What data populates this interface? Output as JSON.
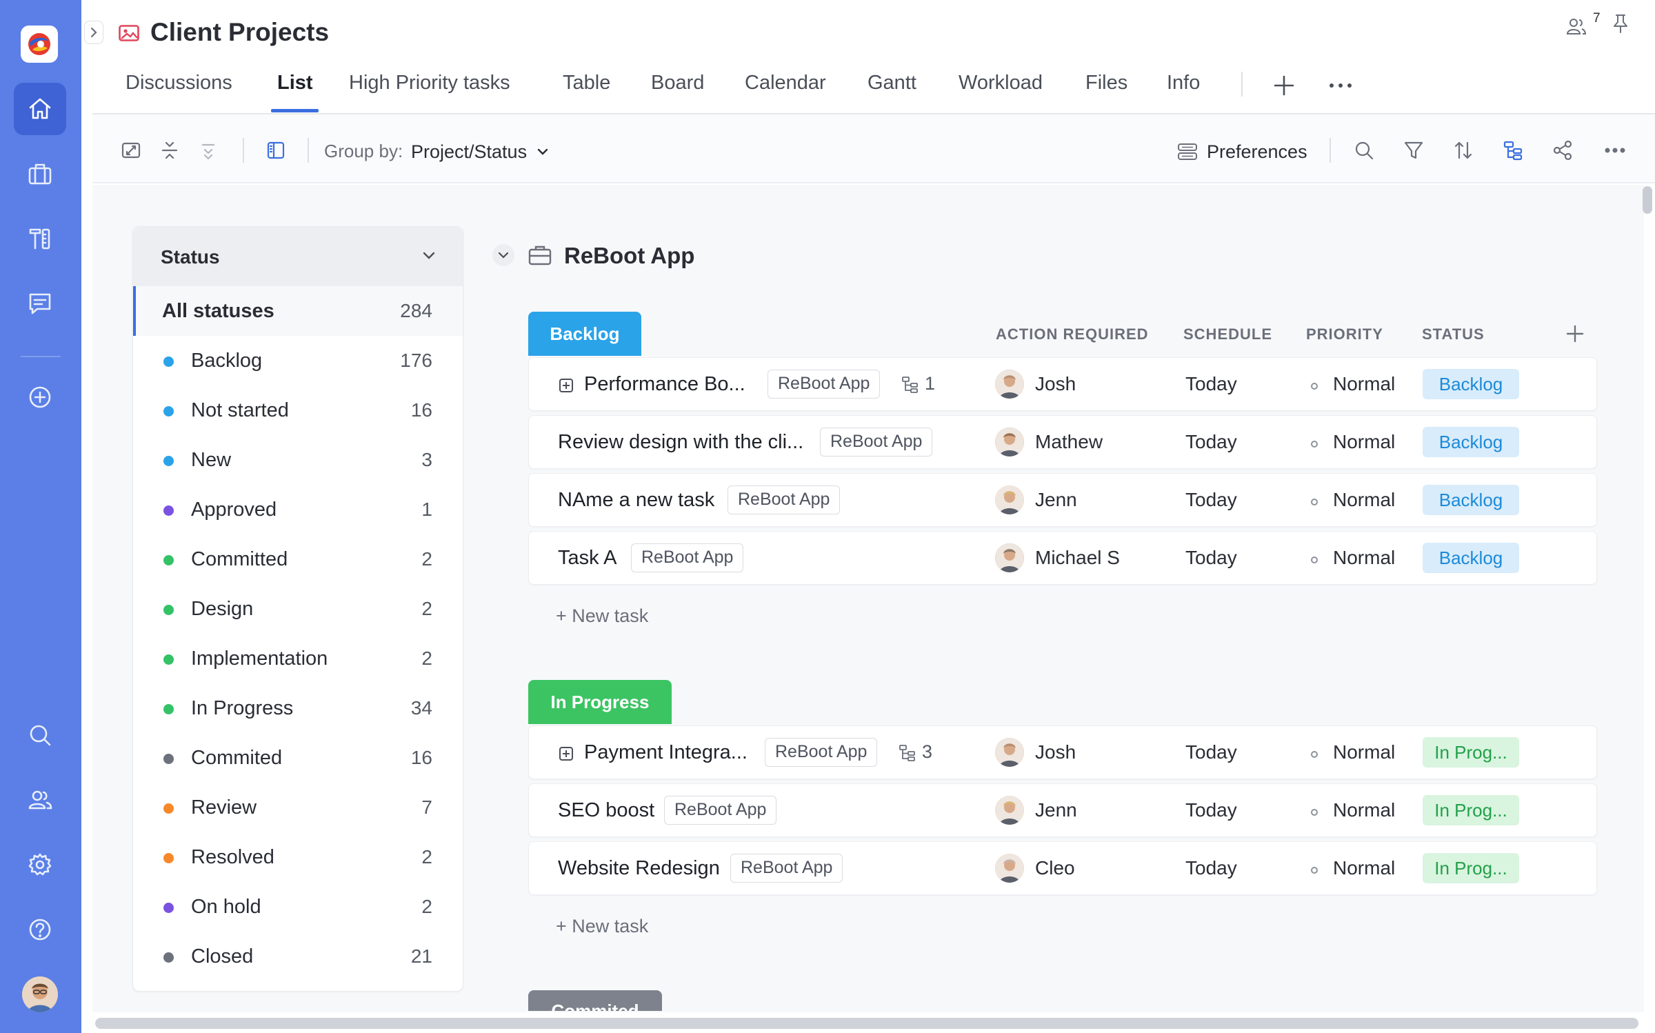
{
  "app": {
    "title": "Client Projects",
    "members_count": "7"
  },
  "tabs": [
    {
      "label": "Discussions"
    },
    {
      "label": "List"
    },
    {
      "label": "High Priority tasks"
    },
    {
      "label": "Table"
    },
    {
      "label": "Board"
    },
    {
      "label": "Calendar"
    },
    {
      "label": "Gantt"
    },
    {
      "label": "Workload"
    },
    {
      "label": "Files"
    },
    {
      "label": "Info"
    }
  ],
  "toolbar": {
    "group_by_label": "Group by:",
    "group_by_value": "Project/Status",
    "preferences_label": "Preferences"
  },
  "status_panel": {
    "title": "Status",
    "items": [
      {
        "label": "All statuses",
        "count": "284",
        "color": ""
      },
      {
        "label": "Backlog",
        "count": "176",
        "color": "#2aa3e8"
      },
      {
        "label": "Not started",
        "count": "16",
        "color": "#2aa3e8"
      },
      {
        "label": "New",
        "count": "3",
        "color": "#2aa3e8"
      },
      {
        "label": "Approved",
        "count": "1",
        "color": "#7b52e0"
      },
      {
        "label": "Committed",
        "count": "2",
        "color": "#34c267"
      },
      {
        "label": "Design",
        "count": "2",
        "color": "#34c267"
      },
      {
        "label": "Implementation",
        "count": "2",
        "color": "#34c267"
      },
      {
        "label": "In Progress",
        "count": "34",
        "color": "#34c267"
      },
      {
        "label": "Commited",
        "count": "16",
        "color": "#6c717b"
      },
      {
        "label": "Review",
        "count": "7",
        "color": "#f7882a"
      },
      {
        "label": "Resolved",
        "count": "2",
        "color": "#f7882a"
      },
      {
        "label": "On hold",
        "count": "2",
        "color": "#7b52e0"
      },
      {
        "label": "Closed",
        "count": "21",
        "color": "#6c717b"
      }
    ]
  },
  "project": {
    "name": "ReBoot App"
  },
  "columns": {
    "action_required": "ACTION REQUIRED",
    "schedule": "SCHEDULE",
    "priority": "PRIORITY",
    "status": "STATUS"
  },
  "groups": [
    {
      "label": "Backlog",
      "color": "#2aa3e8",
      "new_task": "+ New task",
      "tasks": [
        {
          "name": "Performance Bo...",
          "project": "ReBoot App",
          "subtasks": "1",
          "assignee": "Josh",
          "schedule": "Today",
          "priority": "Normal",
          "status": "Backlog"
        },
        {
          "name": "Review design with the cli...",
          "project": "ReBoot App",
          "subtasks": "",
          "assignee": "Mathew",
          "schedule": "Today",
          "priority": "Normal",
          "status": "Backlog"
        },
        {
          "name": "NAme a new task",
          "project": "ReBoot App",
          "subtasks": "",
          "assignee": "Jenn",
          "schedule": "Today",
          "priority": "Normal",
          "status": "Backlog"
        },
        {
          "name": "Task A",
          "project": "ReBoot App",
          "subtasks": "",
          "assignee": "Michael S",
          "schedule": "Today",
          "priority": "Normal",
          "status": "Backlog"
        }
      ]
    },
    {
      "label": "In Progress",
      "color": "#3cc463",
      "new_task": "+ New task",
      "tasks": [
        {
          "name": "Payment Integra...",
          "project": "ReBoot App",
          "subtasks": "3",
          "assignee": "Josh",
          "schedule": "Today",
          "priority": "Normal",
          "status": "In Prog..."
        },
        {
          "name": "SEO boost",
          "project": "ReBoot App",
          "subtasks": "",
          "assignee": "Jenn",
          "schedule": "Today",
          "priority": "Normal",
          "status": "In Prog..."
        },
        {
          "name": "Website Redesign",
          "project": "ReBoot App",
          "subtasks": "",
          "assignee": "Cleo",
          "schedule": "Today",
          "priority": "Normal",
          "status": "In Prog..."
        }
      ]
    },
    {
      "label": "Commited",
      "color": "#7d828c"
    }
  ]
}
